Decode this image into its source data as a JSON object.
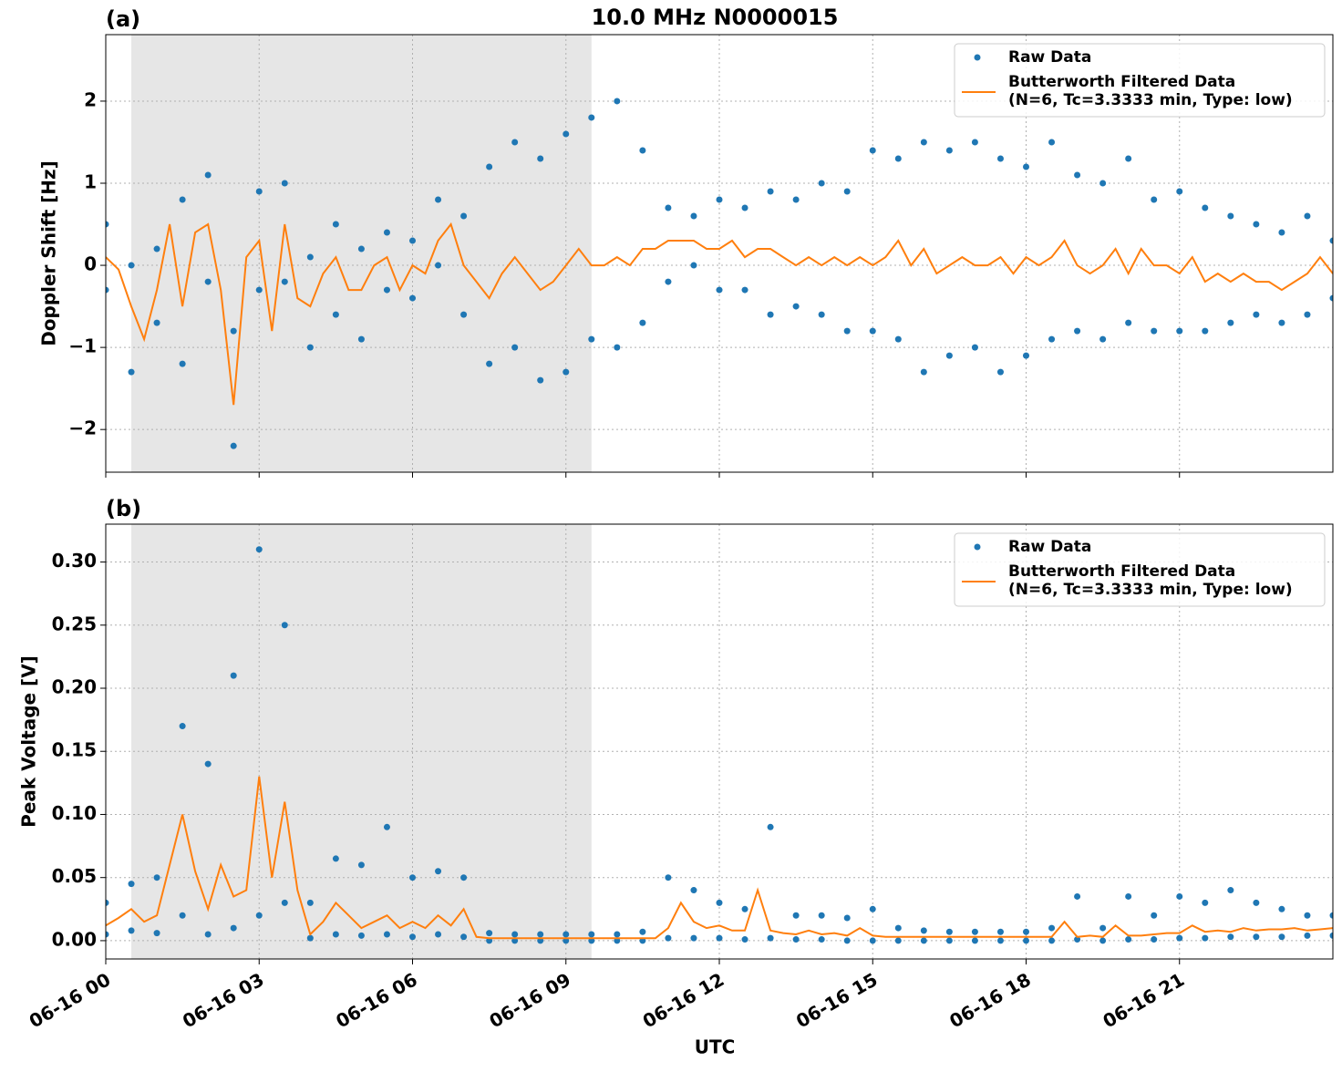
{
  "chart_data": [
    {
      "type": "scatter",
      "title": "10.0 MHz N0000015",
      "panel_label": "(a)",
      "ylabel": "Doppler Shift [Hz]",
      "xlim": [
        0,
        24
      ],
      "xticks": [
        0,
        3,
        6,
        9,
        12,
        15,
        18,
        21
      ],
      "xtick_labels": false,
      "ylim": [
        -2.52,
        2.81
      ],
      "yticks": [
        {
          "value": -2,
          "label": "−2"
        },
        {
          "value": -1,
          "label": "−1"
        },
        0,
        1,
        2
      ],
      "grid": true,
      "legend": "upper right",
      "shaded_span": [
        0.5,
        9.5
      ],
      "shade_color": "#e6e6e6",
      "series": [
        {
          "name": "Raw Data",
          "style": "markers",
          "color": "#1f77b4",
          "x": [
            0,
            0,
            0.5,
            0.5,
            1,
            1,
            1.5,
            1.5,
            2,
            2,
            2.5,
            2.5,
            3,
            3,
            3.5,
            3.5,
            4,
            4,
            4.5,
            4.5,
            5,
            5,
            5.5,
            5.5,
            6,
            6,
            6.5,
            6.5,
            7,
            7,
            7.5,
            7.5,
            8,
            8,
            8.5,
            8.5,
            9,
            9,
            9.5,
            9.5,
            10,
            10,
            10.5,
            10.5,
            11,
            11,
            11.5,
            11.5,
            12,
            12,
            12.5,
            12.5,
            13,
            13,
            13.5,
            13.5,
            14,
            14,
            14.5,
            14.5,
            15,
            15,
            15.5,
            15.5,
            16,
            16,
            16.5,
            16.5,
            17,
            17,
            17.5,
            17.5,
            18,
            18,
            18.5,
            18.5,
            19,
            19,
            19.5,
            19.5,
            20,
            20,
            20.5,
            20.5,
            21,
            21,
            21.5,
            21.5,
            22,
            22,
            22.5,
            22.5,
            23,
            23,
            23.5,
            23.5,
            24,
            24
          ],
          "values": [
            0.5,
            -0.3,
            0.0,
            -1.3,
            0.2,
            -0.7,
            0.8,
            -1.2,
            1.1,
            -0.2,
            -0.8,
            -2.2,
            0.9,
            -0.3,
            1.0,
            -0.2,
            0.1,
            -1.0,
            0.5,
            -0.6,
            0.2,
            -0.9,
            0.4,
            -0.3,
            0.3,
            -0.4,
            0.8,
            0.0,
            0.6,
            -0.6,
            1.2,
            -1.2,
            1.5,
            -1.0,
            1.3,
            -1.4,
            1.6,
            -1.3,
            1.8,
            -0.9,
            2.0,
            -1.0,
            1.4,
            -0.7,
            0.7,
            -0.2,
            0.6,
            0.0,
            0.8,
            -0.3,
            0.7,
            -0.3,
            0.9,
            -0.6,
            0.8,
            -0.5,
            1.0,
            -0.6,
            0.9,
            -0.8,
            1.4,
            -0.8,
            1.3,
            -0.9,
            1.5,
            -1.3,
            1.4,
            -1.1,
            1.5,
            -1.0,
            1.3,
            -1.3,
            1.2,
            -1.1,
            1.5,
            -0.9,
            1.1,
            -0.8,
            1.0,
            -0.9,
            1.3,
            -0.7,
            0.8,
            -0.8,
            0.9,
            -0.8,
            0.7,
            -0.8,
            0.6,
            -0.7,
            0.5,
            -0.6,
            0.4,
            -0.7,
            0.6,
            -0.6,
            0.3,
            -0.4
          ]
        },
        {
          "name": "Butterworth Filtered Data\n(N=6, Tc=3.3333 min, Type: low)",
          "style": "line",
          "color": "#ff7f0e",
          "x": [
            0,
            0.25,
            0.5,
            0.75,
            1,
            1.25,
            1.5,
            1.75,
            2,
            2.25,
            2.5,
            2.75,
            3,
            3.25,
            3.5,
            3.75,
            4,
            4.25,
            4.5,
            4.75,
            5,
            5.25,
            5.5,
            5.75,
            6,
            6.25,
            6.5,
            6.75,
            7,
            7.25,
            7.5,
            7.75,
            8,
            8.25,
            8.5,
            8.75,
            9,
            9.25,
            9.5,
            9.75,
            10,
            10.25,
            10.5,
            10.75,
            11,
            11.25,
            11.5,
            11.75,
            12,
            12.25,
            12.5,
            12.75,
            13,
            13.25,
            13.5,
            13.75,
            14,
            14.25,
            14.5,
            14.75,
            15,
            15.25,
            15.5,
            15.75,
            16,
            16.25,
            16.5,
            16.75,
            17,
            17.25,
            17.5,
            17.75,
            18,
            18.25,
            18.5,
            18.75,
            19,
            19.25,
            19.5,
            19.75,
            20,
            20.25,
            20.5,
            20.75,
            21,
            21.25,
            21.5,
            21.75,
            22,
            22.25,
            22.5,
            22.75,
            23,
            23.25,
            23.5,
            23.75,
            24
          ],
          "values": [
            0.1,
            -0.05,
            -0.5,
            -0.9,
            -0.3,
            0.5,
            -0.5,
            0.4,
            0.5,
            -0.3,
            -1.7,
            0.1,
            0.3,
            -0.8,
            0.5,
            -0.4,
            -0.5,
            -0.1,
            0.1,
            -0.3,
            -0.3,
            0.0,
            0.1,
            -0.3,
            0.0,
            -0.1,
            0.3,
            0.5,
            0.0,
            -0.2,
            -0.4,
            -0.1,
            0.1,
            -0.1,
            -0.3,
            -0.2,
            0.0,
            0.2,
            0.0,
            0.0,
            0.1,
            0.0,
            0.2,
            0.2,
            0.3,
            0.3,
            0.3,
            0.2,
            0.2,
            0.3,
            0.1,
            0.2,
            0.2,
            0.1,
            0.0,
            0.1,
            0.0,
            0.1,
            0.0,
            0.1,
            0.0,
            0.1,
            0.3,
            0.0,
            0.2,
            -0.1,
            0.0,
            0.1,
            0.0,
            0.0,
            0.1,
            -0.1,
            0.1,
            0.0,
            0.1,
            0.3,
            0.0,
            -0.1,
            0.0,
            0.2,
            -0.1,
            0.2,
            0.0,
            0.0,
            -0.1,
            0.1,
            -0.2,
            -0.1,
            -0.2,
            -0.1,
            -0.2,
            -0.2,
            -0.3,
            -0.2,
            -0.1,
            0.1,
            -0.1
          ]
        }
      ]
    },
    {
      "type": "scatter",
      "panel_label": "(b)",
      "ylabel": "Peak Voltage [V]",
      "xlabel": "UTC",
      "xlim": [
        0,
        24
      ],
      "xticks": [
        {
          "value": 0,
          "label": "06-16 00"
        },
        {
          "value": 3,
          "label": "06-16 03"
        },
        {
          "value": 6,
          "label": "06-16 06"
        },
        {
          "value": 9,
          "label": "06-16 09"
        },
        {
          "value": 12,
          "label": "06-16 12"
        },
        {
          "value": 15,
          "label": "06-16 15"
        },
        {
          "value": 18,
          "label": "06-16 18"
        },
        {
          "value": 21,
          "label": "06-16 21"
        }
      ],
      "xtick_labels": true,
      "ylim": [
        -0.0145,
        0.33
      ],
      "yticks": [
        {
          "value": 0,
          "label": "0.00"
        },
        {
          "value": 0.05,
          "label": "0.05"
        },
        {
          "value": 0.1,
          "label": "0.10"
        },
        {
          "value": 0.15,
          "label": "0.15"
        },
        {
          "value": 0.2,
          "label": "0.20"
        },
        {
          "value": 0.25,
          "label": "0.25"
        },
        {
          "value": 0.3,
          "label": "0.30"
        }
      ],
      "grid": true,
      "legend": "upper right",
      "shaded_span": [
        0.5,
        9.5
      ],
      "shade_color": "#e6e6e6",
      "series": [
        {
          "name": "Raw Data",
          "style": "markers",
          "color": "#1f77b4",
          "x": [
            0,
            0,
            0.5,
            0.5,
            1,
            1,
            1.5,
            1.5,
            2,
            2,
            2.5,
            2.5,
            3,
            3,
            3.5,
            3.5,
            4,
            4,
            4.5,
            4.5,
            5,
            5,
            5.5,
            5.5,
            6,
            6,
            6.5,
            6.5,
            7,
            7,
            7.5,
            7.5,
            8,
            8,
            8.5,
            8.5,
            9,
            9,
            9.5,
            9.5,
            10,
            10,
            10.5,
            10.5,
            11,
            11,
            11.5,
            11.5,
            12,
            12,
            12.5,
            12.5,
            13,
            13,
            13.5,
            13.5,
            14,
            14,
            14.5,
            14.5,
            15,
            15,
            15.5,
            15.5,
            16,
            16,
            16.5,
            16.5,
            17,
            17,
            17.5,
            17.5,
            18,
            18,
            18.5,
            18.5,
            19,
            19,
            19.5,
            19.5,
            20,
            20,
            20.5,
            20.5,
            21,
            21,
            21.5,
            21.5,
            22,
            22,
            22.5,
            22.5,
            23,
            23,
            23.5,
            23.5,
            24,
            24
          ],
          "values": [
            0.03,
            0.005,
            0.045,
            0.008,
            0.05,
            0.006,
            0.17,
            0.02,
            0.14,
            0.005,
            0.21,
            0.01,
            0.31,
            0.02,
            0.25,
            0.03,
            0.03,
            0.002,
            0.065,
            0.005,
            0.06,
            0.004,
            0.09,
            0.005,
            0.05,
            0.003,
            0.055,
            0.005,
            0.05,
            0.003,
            0.006,
            0,
            0.005,
            0,
            0.005,
            0,
            0.005,
            0,
            0.005,
            0,
            0.005,
            0,
            0.007,
            0,
            0.05,
            0.002,
            0.04,
            0.002,
            0.03,
            0.002,
            0.025,
            0.001,
            0.09,
            0.002,
            0.02,
            0.001,
            0.02,
            0.001,
            0.018,
            0,
            0.025,
            0,
            0.01,
            0,
            0.008,
            0,
            0.007,
            0,
            0.007,
            0,
            0.007,
            0,
            0.007,
            0,
            0.01,
            0,
            0.035,
            0.001,
            0.01,
            0,
            0.035,
            0.001,
            0.02,
            0.001,
            0.035,
            0.002,
            0.03,
            0.002,
            0.04,
            0.003,
            0.03,
            0.003,
            0.025,
            0.003,
            0.02,
            0.004,
            0.02,
            0.004
          ]
        },
        {
          "name": "Butterworth Filtered Data\n(N=6, Tc=3.3333 min, Type: low)",
          "style": "line",
          "color": "#ff7f0e",
          "x": [
            0,
            0.25,
            0.5,
            0.75,
            1,
            1.25,
            1.5,
            1.75,
            2,
            2.25,
            2.5,
            2.75,
            3,
            3.25,
            3.5,
            3.75,
            4,
            4.25,
            4.5,
            4.75,
            5,
            5.25,
            5.5,
            5.75,
            6,
            6.25,
            6.5,
            6.75,
            7,
            7.25,
            7.5,
            7.75,
            8,
            8.25,
            8.5,
            8.75,
            9,
            9.25,
            9.5,
            9.75,
            10,
            10.25,
            10.5,
            10.75,
            11,
            11.25,
            11.5,
            11.75,
            12,
            12.25,
            12.5,
            12.75,
            13,
            13.25,
            13.5,
            13.75,
            14,
            14.25,
            14.5,
            14.75,
            15,
            15.25,
            15.5,
            15.75,
            16,
            16.25,
            16.5,
            16.75,
            17,
            17.25,
            17.5,
            17.75,
            18,
            18.25,
            18.5,
            18.75,
            19,
            19.25,
            19.5,
            19.75,
            20,
            20.25,
            20.5,
            20.75,
            21,
            21.25,
            21.5,
            21.75,
            22,
            22.25,
            22.5,
            22.75,
            23,
            23.25,
            23.5,
            23.75,
            24
          ],
          "values": [
            0.012,
            0.018,
            0.025,
            0.015,
            0.02,
            0.06,
            0.1,
            0.055,
            0.025,
            0.06,
            0.035,
            0.04,
            0.13,
            0.05,
            0.11,
            0.04,
            0.005,
            0.015,
            0.03,
            0.02,
            0.01,
            0.015,
            0.02,
            0.01,
            0.015,
            0.01,
            0.02,
            0.012,
            0.025,
            0.003,
            0.002,
            0.002,
            0.002,
            0.002,
            0.002,
            0.002,
            0.002,
            0.002,
            0.002,
            0.002,
            0.002,
            0.002,
            0.002,
            0.002,
            0.01,
            0.03,
            0.015,
            0.01,
            0.012,
            0.008,
            0.008,
            0.04,
            0.008,
            0.006,
            0.005,
            0.008,
            0.005,
            0.006,
            0.004,
            0.01,
            0.004,
            0.003,
            0.003,
            0.003,
            0.003,
            0.003,
            0.003,
            0.003,
            0.003,
            0.003,
            0.003,
            0.003,
            0.003,
            0.003,
            0.003,
            0.015,
            0.003,
            0.004,
            0.003,
            0.012,
            0.004,
            0.004,
            0.005,
            0.006,
            0.006,
            0.012,
            0.007,
            0.008,
            0.007,
            0.01,
            0.008,
            0.009,
            0.009,
            0.01,
            0.008,
            0.009,
            0.01
          ]
        }
      ]
    }
  ]
}
